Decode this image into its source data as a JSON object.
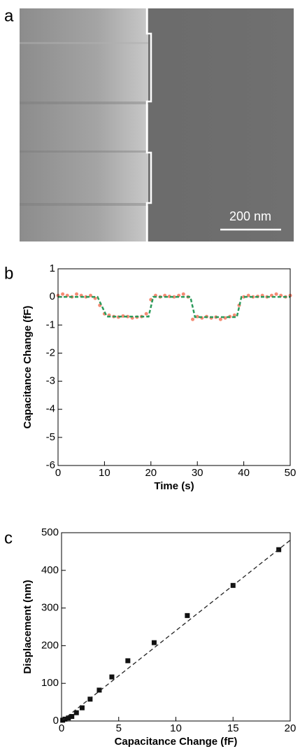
{
  "image_panel": {
    "label": "a",
    "scale_bar": "200 nm"
  },
  "chart_data": [
    {
      "type": "line",
      "label": "b",
      "xlabel": "Time (s)",
      "ylabel": "Capacitance Change (fF)",
      "xlim": [
        0,
        50
      ],
      "xticks": [
        0,
        10,
        20,
        30,
        40,
        50
      ],
      "ylim": [
        -6,
        1
      ],
      "yticks": [
        -6,
        -5,
        -4,
        -3,
        -2,
        -1,
        0,
        1
      ],
      "series": [
        {
          "color": "#f26d50",
          "marker": "circle",
          "x": [
            0,
            1,
            2,
            3,
            4,
            5,
            6,
            7,
            8,
            9,
            10,
            11,
            12,
            13,
            14,
            15,
            16,
            17,
            18,
            19,
            20,
            21,
            22,
            23,
            24,
            25,
            26,
            27,
            28,
            29,
            30,
            31,
            32,
            33,
            34,
            35,
            36,
            37,
            38,
            39,
            40,
            41,
            42,
            43,
            44,
            45,
            46,
            47,
            48,
            49,
            50
          ],
          "values": [
            0.05,
            0.1,
            0.05,
            0.0,
            0.1,
            0.05,
            0.0,
            0.05,
            -0.05,
            -0.3,
            -0.6,
            -0.65,
            -0.7,
            -0.72,
            -0.68,
            -0.7,
            -0.75,
            -0.72,
            -0.7,
            -0.6,
            -0.1,
            0.05,
            0.0,
            0.05,
            0.02,
            0.0,
            0.05,
            0.1,
            0.0,
            -0.8,
            -0.7,
            -0.75,
            -0.7,
            -0.75,
            -0.72,
            -0.8,
            -0.75,
            -0.7,
            -0.65,
            -0.3,
            0.0,
            0.05,
            0.0,
            0.02,
            0.05,
            0.0,
            0.05,
            0.1,
            0.05,
            0.0,
            0.05
          ]
        },
        {
          "color": "#2a9a5a",
          "line_style": "dashed",
          "x": [
            0,
            8.5,
            10.5,
            19.5,
            20.5,
            28.5,
            29.5,
            38.5,
            39.5,
            50
          ],
          "values": [
            0,
            0,
            -0.7,
            -0.7,
            0,
            0,
            -0.72,
            -0.72,
            0,
            0
          ]
        }
      ]
    },
    {
      "type": "scatter",
      "label": "c",
      "xlabel": "Capacitance Change (fF)",
      "ylabel": "Displacement (nm)",
      "xlim": [
        0,
        20
      ],
      "xticks": [
        0,
        5,
        10,
        15,
        20
      ],
      "ylim": [
        0,
        500
      ],
      "yticks": [
        0,
        100,
        200,
        300,
        400,
        500
      ],
      "series": [
        {
          "color": "#111111",
          "marker": "square",
          "x": [
            0.1,
            0.3,
            0.6,
            0.9,
            1.3,
            1.8,
            2.5,
            3.3,
            4.4,
            5.8,
            8.1,
            11,
            15,
            19
          ],
          "values": [
            2,
            5,
            8,
            12,
            22,
            35,
            58,
            82,
            117,
            160,
            208,
            280,
            360,
            455
          ]
        },
        {
          "color": "#222222",
          "line_style": "dashed",
          "x": [
            0,
            20
          ],
          "values": [
            0,
            480
          ]
        }
      ]
    }
  ]
}
